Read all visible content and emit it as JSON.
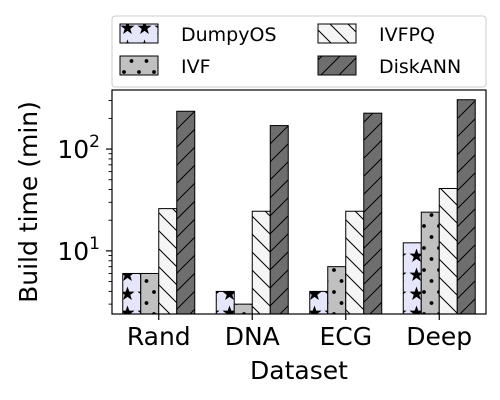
{
  "chart_data": {
    "type": "bar",
    "xlabel": "Dataset",
    "ylabel": "Build time (min)",
    "yscale": "log",
    "ylim": [
      2.4,
      380
    ],
    "categories": [
      "Rand",
      "DNA",
      "ECG",
      "Deep"
    ],
    "y_ticks": [
      10,
      100
    ],
    "y_tick_labels": [
      {
        "base": "10",
        "exp": "1"
      },
      {
        "base": "10",
        "exp": "2"
      }
    ],
    "series": [
      {
        "name": "DumpyOS",
        "values": [
          6,
          4,
          4,
          12
        ],
        "color": "#e6e6fa",
        "hatch": "stars"
      },
      {
        "name": "IVF",
        "values": [
          6,
          3,
          7,
          24
        ],
        "color": "#c0c0c0",
        "hatch": "dots"
      },
      {
        "name": "IVFPQ",
        "values": [
          26,
          24.5,
          24.5,
          41
        ],
        "color": "#f5f5f5",
        "hatch": "backslash"
      },
      {
        "name": "DiskANN",
        "values": [
          235,
          170,
          225,
          305
        ],
        "color": "#6e6e6e",
        "hatch": "slash"
      }
    ],
    "legend": {
      "position": "top",
      "columns": 2
    },
    "grid": false
  }
}
